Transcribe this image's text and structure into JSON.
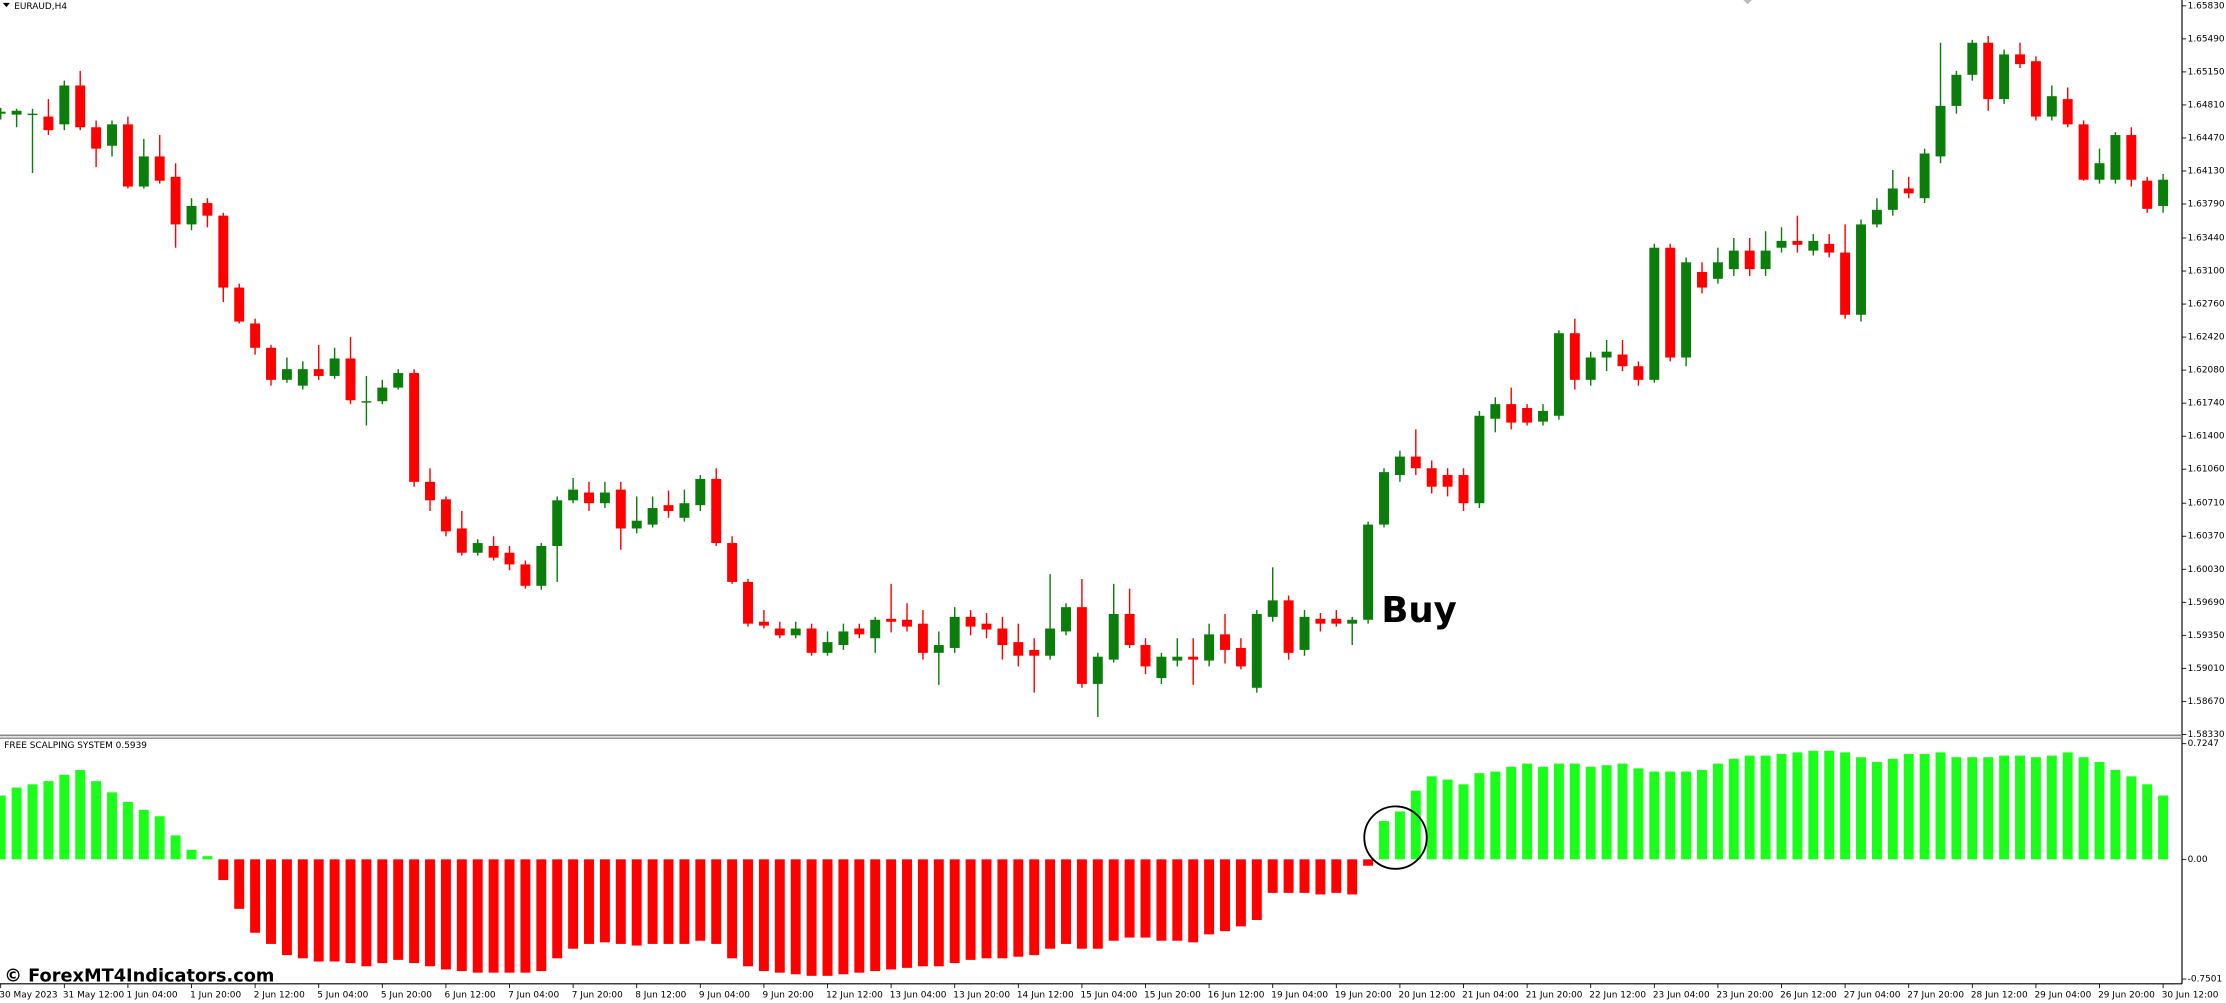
{
  "chart_data": [
    {
      "type": "candlestick",
      "title": "EURAUD,H4",
      "annotation": "Buy",
      "up_color": "#0a7d0a",
      "down_color": "#ff0000",
      "categories": [
        "30 May 2023",
        null,
        null,
        null,
        "31 May 12:00",
        null,
        null,
        null,
        "1 Jun 04:00",
        null,
        null,
        null,
        "1 Jun 20:00",
        null,
        null,
        null,
        "2 Jun 12:00",
        null,
        null,
        null,
        "5 Jun 04:00",
        null,
        null,
        null,
        "5 Jun 20:00",
        null,
        null,
        null,
        "6 Jun 12:00",
        null,
        null,
        null,
        "7 Jun 04:00",
        null,
        null,
        null,
        "7 Jun 20:00",
        null,
        null,
        null,
        "8 Jun 12:00",
        null,
        null,
        null,
        "9 Jun 04:00",
        null,
        null,
        null,
        "9 Jun 20:00",
        null,
        null,
        null,
        "12 Jun 12:00",
        null,
        null,
        null,
        "13 Jun 04:00",
        null,
        null,
        null,
        "13 Jun 20:00",
        null,
        null,
        null,
        "14 Jun 12:00",
        null,
        null,
        null,
        "15 Jun 04:00",
        null,
        null,
        null,
        "15 Jun 20:00",
        null,
        null,
        null,
        "16 Jun 12:00",
        null,
        null,
        null,
        "19 Jun 04:00",
        null,
        null,
        null,
        "19 Jun 20:00",
        null,
        null,
        null,
        "20 Jun 12:00",
        null,
        null,
        null,
        "21 Jun 04:00",
        null,
        null,
        null,
        "21 Jun 20:00",
        null,
        null,
        null,
        "22 Jun 12:00",
        null,
        null,
        null,
        "23 Jun 04:00",
        null,
        null,
        null,
        "23 Jun 20:00",
        null,
        null,
        null,
        "26 Jun 12:00",
        null,
        null,
        null,
        "27 Jun 04:00",
        null,
        null,
        null,
        "27 Jun 20:00",
        null,
        null,
        null,
        "28 Jun 12:00",
        null,
        null,
        null,
        "29 Jun 04:00",
        null,
        null,
        null,
        "29 Jun 20:00",
        null,
        null,
        null,
        "30 Jun 12:00"
      ],
      "open": [
        1.6472,
        1.6471,
        1.6472,
        1.6469,
        1.6461,
        1.6501,
        1.6458,
        1.6439,
        1.6461,
        1.6397,
        1.6428,
        1.6407,
        1.6358,
        1.638,
        1.6367,
        1.6293,
        1.6256,
        1.6231,
        1.6198,
        1.6192,
        1.6209,
        1.6202,
        1.622,
        1.6176,
        1.6176,
        1.619,
        1.6205,
        1.6093,
        1.6075,
        1.6045,
        1.602,
        1.6027,
        1.602,
        1.6008,
        1.5986,
        1.6027,
        1.6074,
        1.6082,
        1.6071,
        1.6085,
        1.6045,
        1.6049,
        1.6069,
        1.6056,
        1.6069,
        1.6096,
        1.603,
        1.599,
        1.5949,
        1.5942,
        1.5935,
        1.5942,
        1.5917,
        1.5925,
        1.5942,
        1.5932,
        1.5952,
        1.5951,
        1.5947,
        1.5917,
        1.5922,
        1.5954,
        1.5947,
        1.5942,
        1.5928,
        1.592,
        1.5914,
        1.5939,
        1.5964,
        1.5885,
        1.591,
        1.5957,
        1.5925,
        1.5891,
        1.5909,
        1.5913,
        1.5909,
        1.5936,
        1.5922,
        1.5881,
        1.5954,
        1.5971,
        1.592,
        1.5952,
        1.5952,
        1.5947,
        1.5951,
        1.6049,
        1.61,
        1.6119,
        1.6107,
        1.61,
        1.61,
        1.6071,
        1.6158,
        1.6173,
        1.6169,
        1.6155,
        1.6161,
        1.6246,
        1.6198,
        1.6221,
        1.6224,
        1.6212,
        1.6198,
        1.6334,
        1.6221,
        1.6309,
        1.6302,
        1.6312,
        1.6331,
        1.6312,
        1.6334,
        1.6341,
        1.6331,
        1.6338,
        1.6329,
        1.6265,
        1.6358,
        1.6373,
        1.6395,
        1.6385,
        1.6428,
        1.648,
        1.6512,
        1.6545,
        1.6487,
        1.6533,
        1.6526,
        1.6469,
        1.6487,
        1.6461,
        1.6404,
        1.6404,
        1.645,
        1.6403,
        1.6377
      ],
      "high": [
        1.6478,
        1.6477,
        1.6477,
        1.6487,
        1.6506,
        1.6516,
        1.6465,
        1.6465,
        1.6469,
        1.6446,
        1.645,
        1.6421,
        1.6385,
        1.6385,
        1.637,
        1.6297,
        1.6261,
        1.6234,
        1.6221,
        1.6217,
        1.6234,
        1.6231,
        1.6242,
        1.6202,
        1.6198,
        1.6209,
        1.6209,
        1.6107,
        1.6078,
        1.6063,
        1.6034,
        1.6037,
        1.6027,
        1.6012,
        1.603,
        1.6078,
        1.6097,
        1.6093,
        1.6093,
        1.6093,
        1.6078,
        1.6078,
        1.6084,
        1.6085,
        1.61,
        1.6107,
        1.6037,
        1.5993,
        1.5961,
        1.5949,
        1.5949,
        1.5947,
        1.5939,
        1.5947,
        1.5947,
        1.5954,
        1.5988,
        1.5968,
        1.5961,
        1.5939,
        1.5964,
        1.5961,
        1.5958,
        1.5954,
        1.5947,
        1.5932,
        1.5998,
        1.5968,
        1.5993,
        1.5917,
        1.5988,
        1.5983,
        1.5932,
        1.5917,
        1.5932,
        1.5932,
        1.5947,
        1.5957,
        1.5932,
        1.5961,
        1.6005,
        1.5976,
        1.5961,
        1.5958,
        1.5961,
        1.5954,
        1.6052,
        1.6107,
        1.6125,
        1.6147,
        1.6115,
        1.6107,
        1.6107,
        1.6166,
        1.618,
        1.619,
        1.6173,
        1.6173,
        1.6249,
        1.6261,
        1.6227,
        1.6239,
        1.6239,
        1.6217,
        1.6338,
        1.6338,
        1.6324,
        1.6319,
        1.6334,
        1.6344,
        1.6344,
        1.6351,
        1.6355,
        1.6367,
        1.6348,
        1.6348,
        1.6358,
        1.6363,
        1.6385,
        1.6414,
        1.6407,
        1.6436,
        1.6545,
        1.6516,
        1.6548,
        1.6552,
        1.6538,
        1.6545,
        1.6531,
        1.6501,
        1.6499,
        1.6465,
        1.6436,
        1.6453,
        1.6458,
        1.6407,
        1.641
      ],
      "low": [
        1.6466,
        1.6458,
        1.6411,
        1.645,
        1.6455,
        1.6455,
        1.6417,
        1.6428,
        1.6395,
        1.6395,
        1.64,
        1.6334,
        1.6352,
        1.6355,
        1.6278,
        1.6256,
        1.6224,
        1.6192,
        1.6195,
        1.6188,
        1.6198,
        1.6199,
        1.6173,
        1.6151,
        1.6173,
        1.6188,
        1.6088,
        1.6063,
        1.6037,
        1.6017,
        1.6017,
        1.6012,
        1.6002,
        1.5983,
        1.5982,
        1.599,
        1.6071,
        1.6063,
        1.6066,
        1.6023,
        1.604,
        1.6046,
        1.6056,
        1.6052,
        1.6063,
        1.6027,
        1.5988,
        1.5944,
        1.5942,
        1.5932,
        1.5932,
        1.5914,
        1.5914,
        1.592,
        1.5932,
        1.5917,
        1.5938,
        1.5939,
        1.591,
        1.5884,
        1.5917,
        1.5935,
        1.5932,
        1.591,
        1.5903,
        1.5876,
        1.591,
        1.5935,
        1.5881,
        1.5851,
        1.5907,
        1.5922,
        1.5895,
        1.5885,
        1.5903,
        1.5884,
        1.5903,
        1.5906,
        1.59,
        1.5876,
        1.5949,
        1.591,
        1.5914,
        1.5939,
        1.5944,
        1.5925,
        1.5947,
        1.6046,
        1.6093,
        1.61,
        1.6081,
        1.6078,
        1.6063,
        1.6066,
        1.6144,
        1.6147,
        1.6151,
        1.6151,
        1.6157,
        1.6188,
        1.6192,
        1.6207,
        1.6207,
        1.6192,
        1.6195,
        1.6217,
        1.6212,
        1.6287,
        1.6297,
        1.6305,
        1.6305,
        1.6305,
        1.6329,
        1.6329,
        1.6326,
        1.6324,
        1.6261,
        1.6258,
        1.6355,
        1.6367,
        1.6385,
        1.638,
        1.6421,
        1.6472,
        1.6506,
        1.6475,
        1.6482,
        1.6519,
        1.6465,
        1.6465,
        1.6458,
        1.6403,
        1.64,
        1.64,
        1.6397,
        1.637,
        1.637
      ],
      "close": [
        1.6474,
        1.6475,
        1.6472,
        1.6455,
        1.6501,
        1.6458,
        1.6436,
        1.6461,
        1.6397,
        1.6428,
        1.6403,
        1.6358,
        1.6377,
        1.6367,
        1.6293,
        1.6258,
        1.6231,
        1.6198,
        1.6209,
        1.6209,
        1.6202,
        1.622,
        1.6177,
        1.6176,
        1.619,
        1.6205,
        1.6093,
        1.6074,
        1.6042,
        1.602,
        1.603,
        1.6015,
        1.6008,
        1.5986,
        1.6027,
        1.6074,
        1.6085,
        1.6071,
        1.6082,
        1.6045,
        1.6053,
        1.6066,
        1.6063,
        1.6071,
        1.6096,
        1.603,
        1.599,
        1.5947,
        1.5945,
        1.5935,
        1.5942,
        1.5917,
        1.5928,
        1.5939,
        1.5936,
        1.5951,
        1.5949,
        1.5944,
        1.5917,
        1.5925,
        1.5954,
        1.5944,
        1.5941,
        1.5925,
        1.5914,
        1.5914,
        1.5942,
        1.5964,
        1.5885,
        1.5913,
        1.5957,
        1.5925,
        1.5903,
        1.5913,
        1.5913,
        1.591,
        1.5936,
        1.592,
        1.5903,
        1.5957,
        1.5971,
        1.5917,
        1.5954,
        1.5947,
        1.5947,
        1.5951,
        1.6049,
        1.6103,
        1.6119,
        1.6107,
        1.6088,
        1.6088,
        1.6071,
        1.6161,
        1.6173,
        1.6154,
        1.6154,
        1.6166,
        1.6246,
        1.6198,
        1.6221,
        1.6227,
        1.6212,
        1.6198,
        1.6334,
        1.6221,
        1.6319,
        1.6293,
        1.6319,
        1.6331,
        1.6312,
        1.6331,
        1.6341,
        1.6337,
        1.6341,
        1.6329,
        1.6265,
        1.6358,
        1.6373,
        1.6395,
        1.639,
        1.6431,
        1.648,
        1.6512,
        1.6545,
        1.6487,
        1.6533,
        1.6523,
        1.6469,
        1.649,
        1.6461,
        1.6404,
        1.6421,
        1.645,
        1.6404,
        1.6374,
        1.6404
      ],
      "ylim": [
        1.5832,
        1.6589
      ],
      "yticks": [
        {
          "value": 1.6583,
          "label": "1.65830"
        },
        {
          "value": 1.6549,
          "label": "1.65490"
        },
        {
          "value": 1.6515,
          "label": "1.65150"
        },
        {
          "value": 1.6481,
          "label": "1.64810"
        },
        {
          "value": 1.6447,
          "label": "1.64470"
        },
        {
          "value": 1.6413,
          "label": "1.64130"
        },
        {
          "value": 1.6379,
          "label": "1.63790"
        },
        {
          "value": 1.6344,
          "label": "1.63440"
        },
        {
          "value": 1.631,
          "label": "1.63100"
        },
        {
          "value": 1.6276,
          "label": "1.62760"
        },
        {
          "value": 1.6242,
          "label": "1.62420"
        },
        {
          "value": 1.6208,
          "label": "1.62080"
        },
        {
          "value": 1.6174,
          "label": "1.61740"
        },
        {
          "value": 1.614,
          "label": "1.61400"
        },
        {
          "value": 1.6106,
          "label": "1.61060"
        },
        {
          "value": 1.6071,
          "label": "1.60710"
        },
        {
          "value": 1.6037,
          "label": "1.60370"
        },
        {
          "value": 1.6003,
          "label": "1.60030"
        },
        {
          "value": 1.5969,
          "label": "1.59690"
        },
        {
          "value": 1.5935,
          "label": "1.59350"
        },
        {
          "value": 1.5901,
          "label": "1.59010"
        },
        {
          "value": 1.5867,
          "label": "1.58670"
        },
        {
          "value": 1.5833,
          "label": "1.58330"
        }
      ]
    },
    {
      "type": "bar",
      "title": "FREE SCALPING SYSTEM 0.5939",
      "positive_color": "#1aff1a",
      "negative_color": "#ff0000",
      "values": [
        0.4,
        0.45,
        0.47,
        0.49,
        0.53,
        0.56,
        0.49,
        0.42,
        0.36,
        0.31,
        0.27,
        0.15,
        0.06,
        0.02,
        -0.13,
        -0.31,
        -0.46,
        -0.53,
        -0.6,
        -0.62,
        -0.64,
        -0.64,
        -0.65,
        -0.67,
        -0.65,
        -0.63,
        -0.65,
        -0.67,
        -0.69,
        -0.7,
        -0.71,
        -0.71,
        -0.71,
        -0.71,
        -0.7,
        -0.62,
        -0.56,
        -0.53,
        -0.52,
        -0.53,
        -0.54,
        -0.53,
        -0.53,
        -0.53,
        -0.51,
        -0.53,
        -0.62,
        -0.67,
        -0.7,
        -0.71,
        -0.72,
        -0.73,
        -0.73,
        -0.72,
        -0.71,
        -0.7,
        -0.69,
        -0.68,
        -0.67,
        -0.67,
        -0.65,
        -0.63,
        -0.62,
        -0.62,
        -0.61,
        -0.6,
        -0.56,
        -0.53,
        -0.56,
        -0.56,
        -0.51,
        -0.49,
        -0.49,
        -0.51,
        -0.51,
        -0.52,
        -0.47,
        -0.45,
        -0.42,
        -0.38,
        -0.21,
        -0.21,
        -0.21,
        -0.22,
        -0.21,
        -0.22,
        -0.04,
        0.24,
        0.3,
        0.43,
        0.52,
        0.5,
        0.47,
        0.54,
        0.55,
        0.58,
        0.6,
        0.58,
        0.6,
        0.6,
        0.58,
        0.59,
        0.6,
        0.57,
        0.55,
        0.55,
        0.55,
        0.56,
        0.6,
        0.63,
        0.65,
        0.65,
        0.66,
        0.67,
        0.68,
        0.68,
        0.67,
        0.64,
        0.61,
        0.63,
        0.66,
        0.66,
        0.67,
        0.64,
        0.64,
        0.64,
        0.65,
        0.65,
        0.64,
        0.65,
        0.67,
        0.64,
        0.61,
        0.56,
        0.52,
        0.47,
        0.4
      ],
      "ylim": [
        -0.78,
        0.75
      ],
      "yticks": [
        0.7247,
        {
          "value": 0,
          "label": "0.00"
        },
        -0.7501
      ]
    }
  ],
  "watermark": "© ForexMT4Indicators.com"
}
